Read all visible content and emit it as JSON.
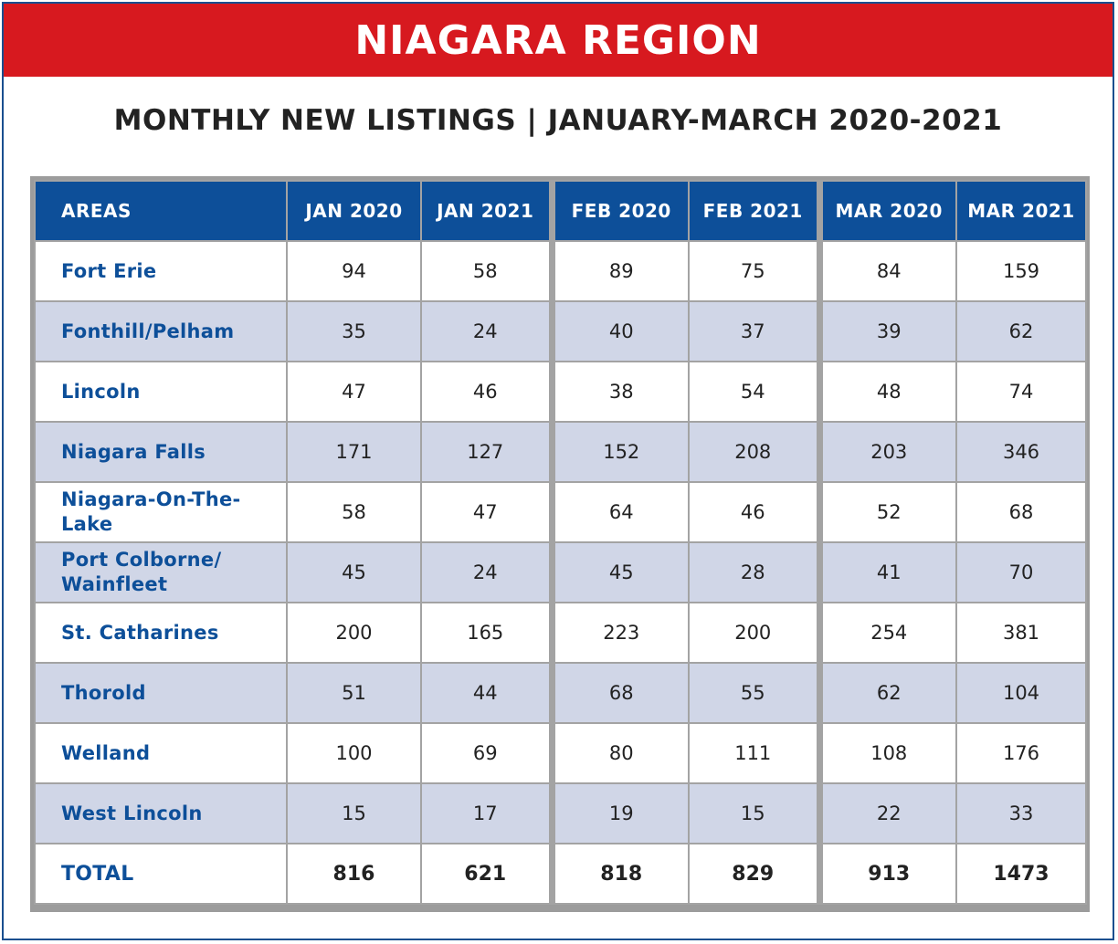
{
  "banner": {
    "title": "NIAGARA REGION",
    "color": "#d7191f"
  },
  "subtitle": "MONTHLY NEW LISTINGS | JANUARY-MARCH 2020-2021",
  "table": {
    "headers": [
      "AREAS",
      "JAN 2020",
      "JAN 2021",
      "FEB 2020",
      "FEB 2021",
      "MAR 2020",
      "MAR 2021"
    ],
    "header_color": "#0d4f99",
    "stripe_color": "#d0d6e7",
    "rows": [
      {
        "area": "Fort Erie",
        "values": [
          "94",
          "58",
          "89",
          "75",
          "84",
          "159"
        ]
      },
      {
        "area": "Fonthill/Pelham",
        "values": [
          "35",
          "24",
          "40",
          "37",
          "39",
          "62"
        ]
      },
      {
        "area": "Lincoln",
        "values": [
          "47",
          "46",
          "38",
          "54",
          "48",
          "74"
        ]
      },
      {
        "area": "Niagara Falls",
        "values": [
          "171",
          "127",
          "152",
          "208",
          "203",
          "346"
        ]
      },
      {
        "area": "Niagara-On-The-Lake",
        "values": [
          "58",
          "47",
          "64",
          "46",
          "52",
          "68"
        ]
      },
      {
        "area": "Port Colborne/ Wainfleet",
        "values": [
          "45",
          "24",
          "45",
          "28",
          "41",
          "70"
        ]
      },
      {
        "area": "St. Catharines",
        "values": [
          "200",
          "165",
          "223",
          "200",
          "254",
          "381"
        ]
      },
      {
        "area": "Thorold",
        "values": [
          "51",
          "44",
          "68",
          "55",
          "62",
          "104"
        ]
      },
      {
        "area": "Welland",
        "values": [
          "100",
          "69",
          "80",
          "111",
          "108",
          "176"
        ]
      },
      {
        "area": "West Lincoln",
        "values": [
          "15",
          "17",
          "19",
          "15",
          "22",
          "33"
        ]
      }
    ],
    "total": {
      "area": "TOTAL",
      "values": [
        "816",
        "621",
        "818",
        "829",
        "913",
        "1473"
      ]
    }
  }
}
